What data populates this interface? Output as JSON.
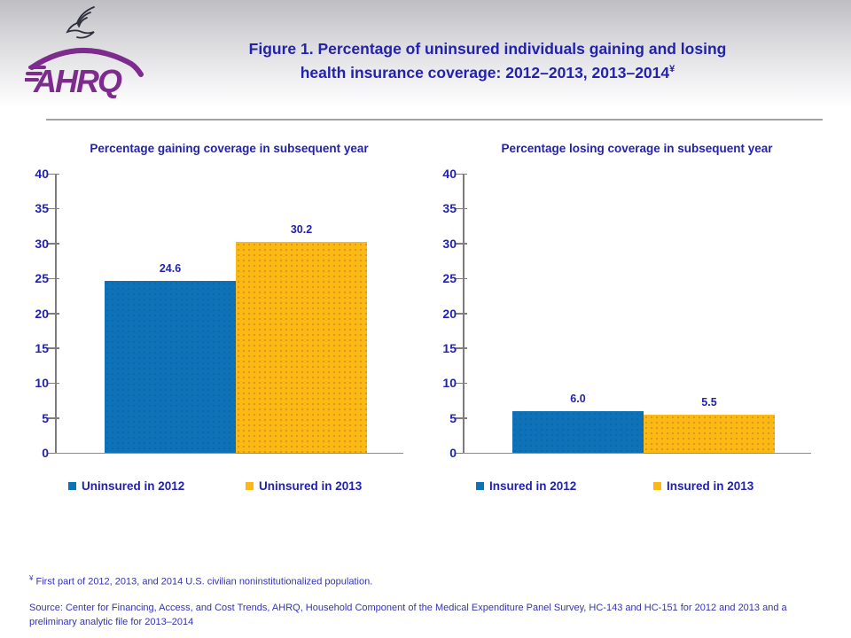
{
  "header": {
    "logo_text": "AHRQ",
    "title_line1": "Figure 1. Percentage of uninsured individuals gaining and losing",
    "title_line2": "health insurance coverage: 2012–2013, 2013–2014",
    "title_sup": "¥"
  },
  "chart_data": [
    {
      "type": "bar",
      "title": "Percentage gaining coverage in subsequent year",
      "categories": [
        "Uninsured in 2012",
        "Uninsured in 2013"
      ],
      "values": [
        24.6,
        30.2
      ],
      "value_labels": [
        "24.6",
        "30.2"
      ],
      "colors": [
        "#0e72b8",
        "#fcb813"
      ],
      "ylim": [
        0,
        40
      ],
      "ytick_step": 5,
      "grid": false,
      "legend_position": "bottom"
    },
    {
      "type": "bar",
      "title": "Percentage losing coverage in subsequent year",
      "categories": [
        "Insured in 2012",
        "Insured in 2013"
      ],
      "values": [
        6.0,
        5.5
      ],
      "value_labels": [
        "6.0",
        "5.5"
      ],
      "colors": [
        "#0e72b8",
        "#fcb813"
      ],
      "ylim": [
        0,
        40
      ],
      "ytick_step": 5,
      "grid": false,
      "legend_position": "bottom"
    }
  ],
  "footnotes": {
    "symbol": "¥",
    "note": "First part of 2012, 2013, and 2014 U.S. civilian noninstitutionalized population.",
    "source": "Source: Center for Financing, Access, and Cost Trends, AHRQ, Household Component of the Medical Expenditure Panel Survey, HC-143 and HC-151 for 2012 and 2013 and a preliminary analytic file for 2013–2014"
  },
  "colors": {
    "bar_blue": "#0e72b8",
    "bar_yellow": "#fcb813",
    "heading_blue": "#2222ae",
    "footnote_blue": "#3434b0",
    "logo_purple": "#7e2b8e"
  }
}
